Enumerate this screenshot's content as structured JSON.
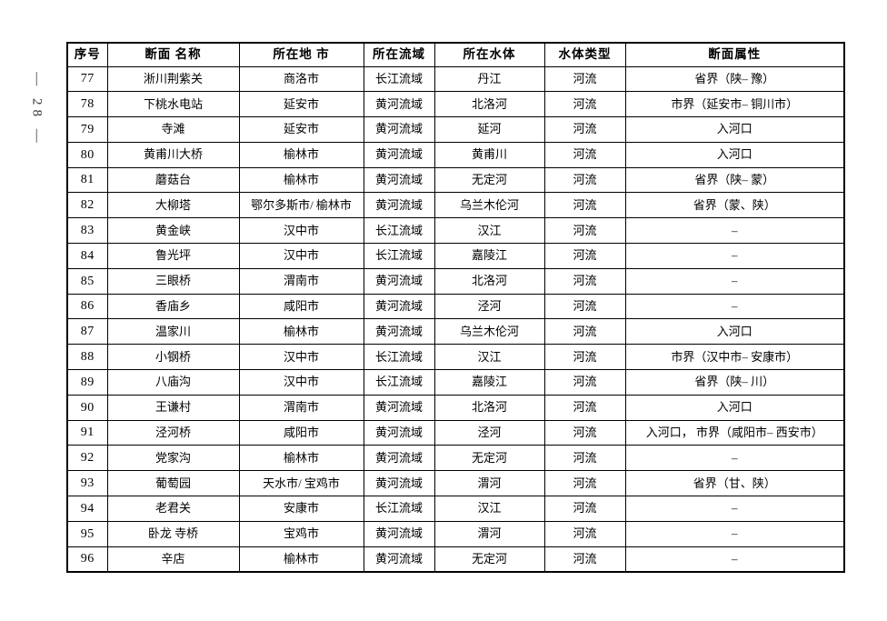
{
  "page": {
    "margin_page_number": "— 28 —"
  },
  "colors": {
    "background": "#ffffff",
    "text": "#000000",
    "border": "#000000"
  },
  "table": {
    "column_keys": [
      "index",
      "name",
      "city",
      "basin",
      "water_body",
      "type",
      "attribute"
    ],
    "headers": {
      "index": "序号",
      "name": "断面 名称",
      "city": "所在地 市",
      "basin": "所在流域",
      "water_body": "所在水体",
      "type": "水体类型",
      "attribute": "断面属性"
    },
    "rows": [
      [
        "77",
        "淅川荆紫关",
        "商洛市",
        "长江流域",
        "丹江",
        "河流",
        "省界（陕– 豫）"
      ],
      [
        "78",
        "下桃水电站",
        "延安市",
        "黄河流域",
        "北洛河",
        "河流",
        "市界（延安市– 铜川市）"
      ],
      [
        "79",
        "寺滩",
        "延安市",
        "黄河流域",
        "延河",
        "河流",
        "入河口"
      ],
      [
        "80",
        "黄甫川大桥",
        "榆林市",
        "黄河流域",
        "黄甫川",
        "河流",
        "入河口"
      ],
      [
        "81",
        "蘑菇台",
        "榆林市",
        "黄河流域",
        "无定河",
        "河流",
        "省界（陕– 蒙）"
      ],
      [
        "82",
        "大柳塔",
        "鄂尔多斯市/ 榆林市",
        "黄河流域",
        "乌兰木伦河",
        "河流",
        "省界（蒙、陕）"
      ],
      [
        "83",
        "黄金峡",
        "汉中市",
        "长江流域",
        "汉江",
        "河流",
        "–"
      ],
      [
        "84",
        "鲁光坪",
        "汉中市",
        "长江流域",
        "嘉陵江",
        "河流",
        "–"
      ],
      [
        "85",
        "三眼桥",
        "渭南市",
        "黄河流域",
        "北洛河",
        "河流",
        "–"
      ],
      [
        "86",
        "香庙乡",
        "咸阳市",
        "黄河流域",
        "泾河",
        "河流",
        "–"
      ],
      [
        "87",
        "温家川",
        "榆林市",
        "黄河流域",
        "乌兰木伦河",
        "河流",
        "入河口"
      ],
      [
        "88",
        "小钢桥",
        "汉中市",
        "长江流域",
        "汉江",
        "河流",
        "市界（汉中市– 安康市）"
      ],
      [
        "89",
        "八庙沟",
        "汉中市",
        "长江流域",
        "嘉陵江",
        "河流",
        "省界（陕– 川）"
      ],
      [
        "90",
        "王谦村",
        "渭南市",
        "黄河流域",
        "北洛河",
        "河流",
        "入河口"
      ],
      [
        "91",
        "泾河桥",
        "咸阳市",
        "黄河流域",
        "泾河",
        "河流",
        "入河口， 市界（咸阳市– 西安市）"
      ],
      [
        "92",
        "党家沟",
        "榆林市",
        "黄河流域",
        "无定河",
        "河流",
        "–"
      ],
      [
        "93",
        "葡萄园",
        "天水市/ 宝鸡市",
        "黄河流域",
        "渭河",
        "河流",
        "省界（甘、陕）"
      ],
      [
        "94",
        "老君关",
        "安康市",
        "长江流域",
        "汉江",
        "河流",
        "–"
      ],
      [
        "95",
        "卧龙 寺桥",
        "宝鸡市",
        "黄河流域",
        "渭河",
        "河流",
        "–"
      ],
      [
        "96",
        "辛店",
        "榆林市",
        "黄河流域",
        "无定河",
        "河流",
        "–"
      ]
    ]
  }
}
